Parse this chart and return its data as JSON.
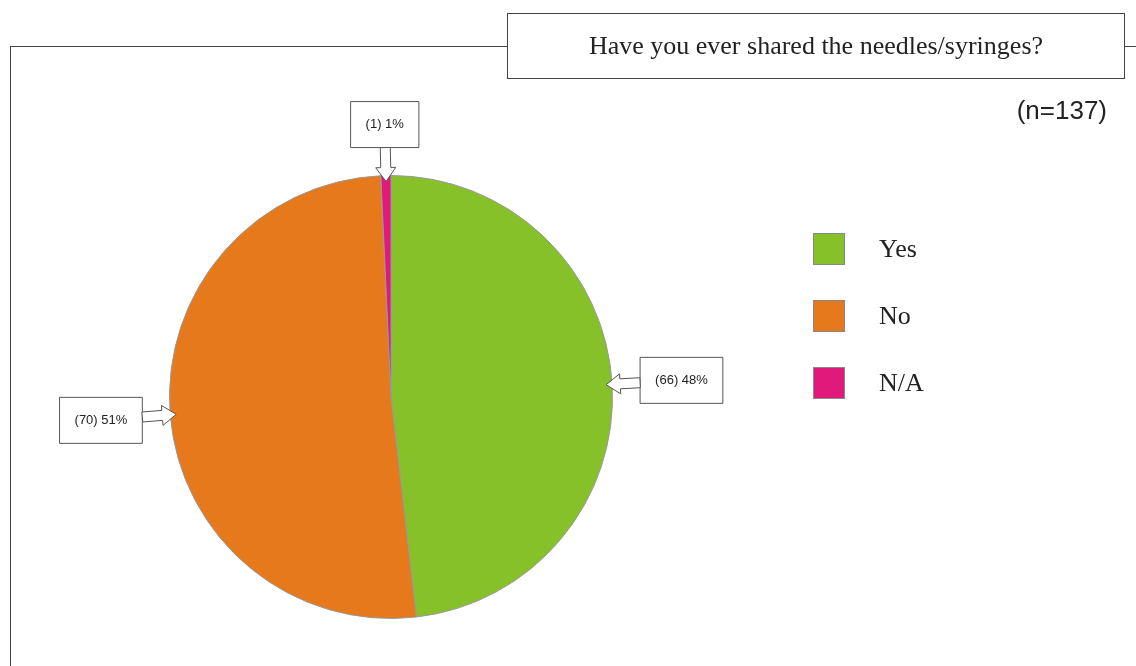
{
  "chart_data": {
    "type": "pie",
    "title": "Have you ever shared the needles/syringes?",
    "subtitle": "(n=137)",
    "categories": [
      "Yes",
      "No",
      "N/A"
    ],
    "values": [
      66,
      70,
      1
    ],
    "colors": [
      "#86c12a",
      "#e6791b",
      "#e0197b"
    ],
    "value_labels": [
      "(66) 48%",
      "(70) 51%",
      "(1) 1%"
    ],
    "legend": "right"
  }
}
